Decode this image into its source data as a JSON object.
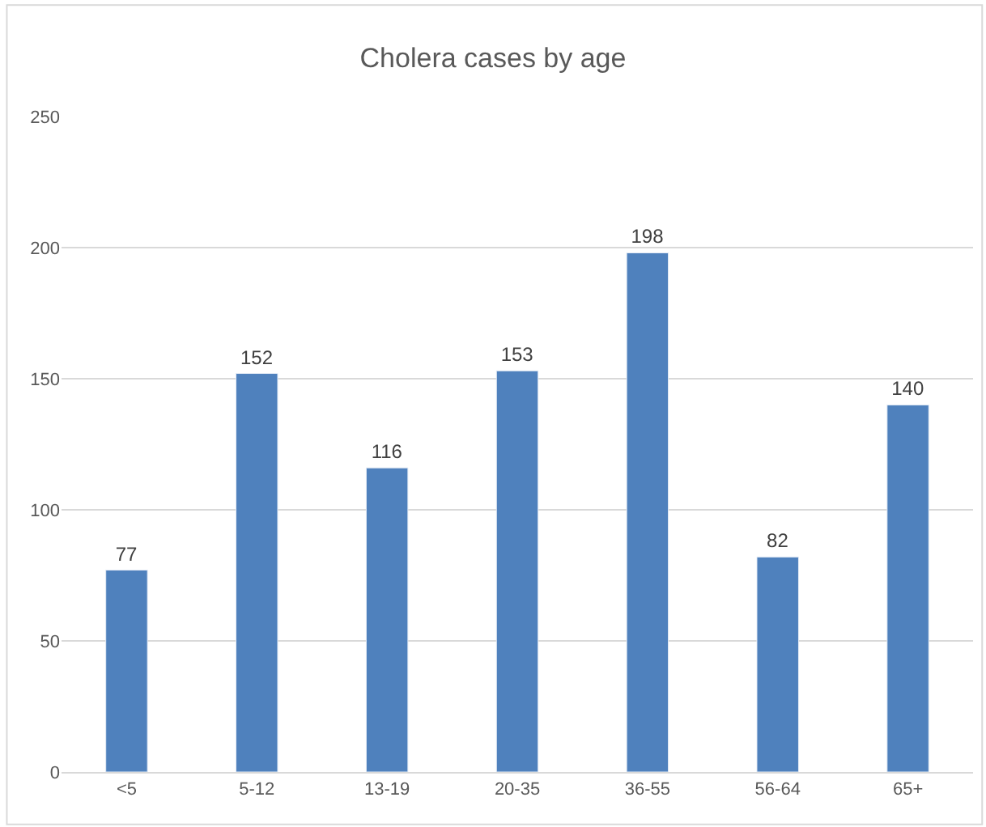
{
  "chart_data": {
    "type": "bar",
    "title": "Cholera cases by age",
    "categories": [
      "<5",
      "5-12",
      "13-19",
      "20-35",
      "36-55",
      "56-64",
      "65+"
    ],
    "values": [
      77,
      152,
      116,
      153,
      198,
      82,
      140
    ],
    "color": "#4f81bd",
    "ylim": [
      0,
      250
    ],
    "yticks": [
      0,
      50,
      100,
      150,
      200,
      250
    ],
    "grid": "y",
    "data_labels": true
  }
}
